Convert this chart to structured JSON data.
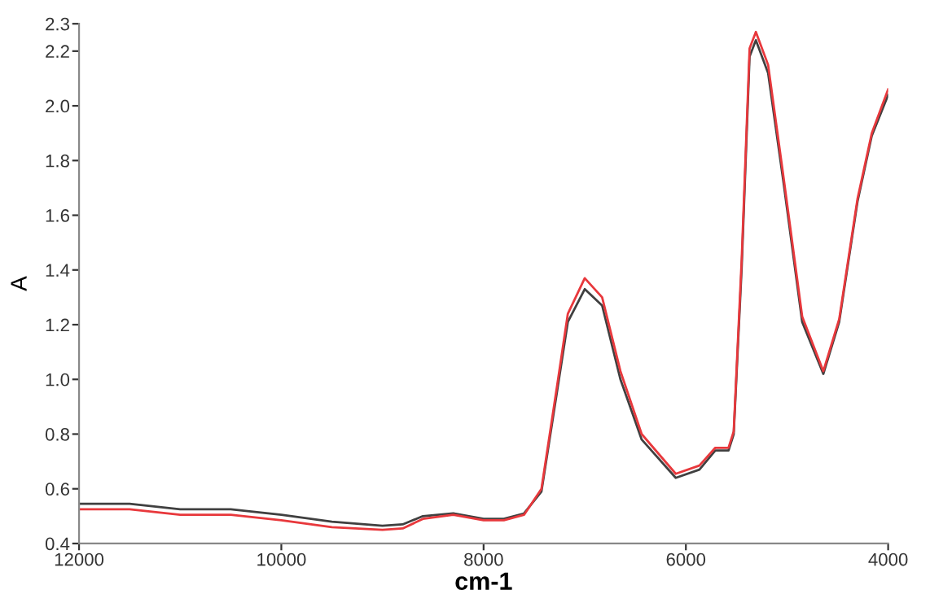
{
  "chart_data": {
    "type": "line",
    "xlabel": "cm-1",
    "ylabel": "A",
    "xlim": [
      12000,
      4000
    ],
    "xticks": [
      12000,
      10000,
      8000,
      6000,
      4000
    ],
    "ylim": [
      0.4,
      2.3
    ],
    "yticks": [
      0.4,
      0.6,
      0.8,
      {
        "value": 1,
        "label": "1.0"
      },
      1.2,
      1.4,
      1.6,
      1.8,
      {
        "value": 2,
        "label": "2.0"
      },
      2.2,
      2.3
    ],
    "grid": false,
    "legend": false,
    "marker": "none",
    "line_style": "solid",
    "series": [
      {
        "color": "#404040",
        "x": [
          12000,
          11500,
          11000,
          10500,
          10000,
          9500,
          9000,
          8800,
          8600,
          8300,
          8000,
          7800,
          7600,
          7428,
          7272,
          7167,
          7000,
          6828,
          6647,
          6437,
          6100,
          5866,
          5709,
          5578,
          5527,
          5448,
          5370,
          5308,
          5187,
          5031,
          4850,
          4641,
          4484,
          4303,
          4162,
          4000
        ],
        "values": [
          0.545,
          0.545,
          0.525,
          0.525,
          0.505,
          0.48,
          0.465,
          0.47,
          0.5,
          0.51,
          0.49,
          0.49,
          0.51,
          0.59,
          0.96,
          1.21,
          1.33,
          1.27,
          1.0,
          0.78,
          0.64,
          0.67,
          0.74,
          0.74,
          0.8,
          1.41,
          2.18,
          2.24,
          2.12,
          1.71,
          1.21,
          1.02,
          1.21,
          1.65,
          1.89,
          2.04
        ]
      },
      {
        "color": "#e8383c",
        "x": [
          12000,
          11500,
          11000,
          10500,
          10000,
          9500,
          9000,
          8800,
          8600,
          8300,
          8000,
          7800,
          7600,
          7428,
          7272,
          7167,
          7000,
          6828,
          6647,
          6437,
          6100,
          5866,
          5709,
          5578,
          5527,
          5448,
          5370,
          5308,
          5187,
          5031,
          4850,
          4641,
          4484,
          4303,
          4162,
          4000
        ],
        "values": [
          0.525,
          0.525,
          0.505,
          0.505,
          0.485,
          0.46,
          0.45,
          0.455,
          0.49,
          0.505,
          0.485,
          0.485,
          0.505,
          0.6,
          0.98,
          1.24,
          1.37,
          1.3,
          1.03,
          0.8,
          0.655,
          0.685,
          0.75,
          0.75,
          0.81,
          1.44,
          2.21,
          2.27,
          2.15,
          1.73,
          1.23,
          1.03,
          1.22,
          1.66,
          1.9,
          2.06
        ]
      }
    ]
  }
}
